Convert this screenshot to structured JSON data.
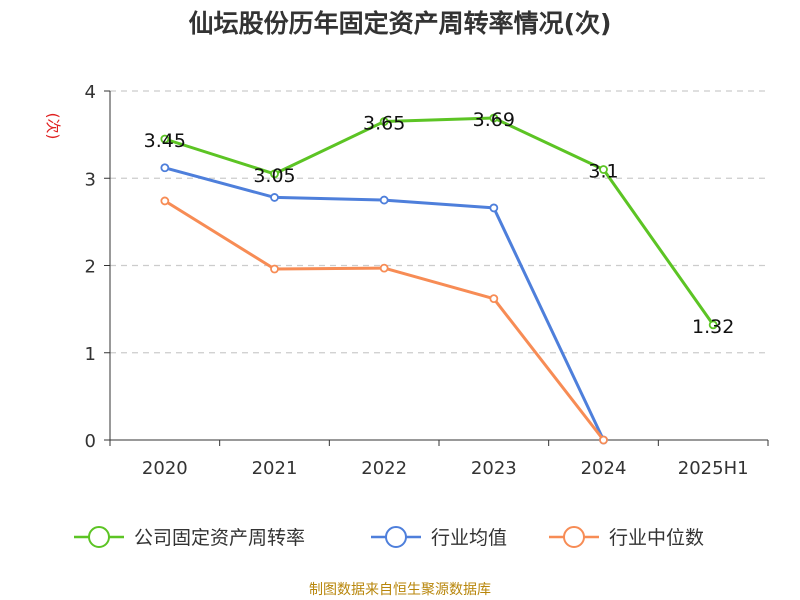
{
  "title": "仙坛股份历年固定资产周转率情况(次)",
  "footer": "制图数据来自恒生聚源数据库",
  "chart_data": {
    "type": "line",
    "title": "仙坛股份历年固定资产周转率情况(次)",
    "ylabel": "(次)",
    "xlabel": "",
    "categories": [
      "2020",
      "2021",
      "2022",
      "2023",
      "2024",
      "2025H1"
    ],
    "ylim": [
      0,
      4
    ],
    "yticks": [
      0,
      1,
      2,
      3,
      4
    ],
    "grid": "horizontal dashed",
    "legend_position": "bottom",
    "series": [
      {
        "name": "公司固定资产周转率",
        "color": "#5cc424",
        "values": [
          3.45,
          3.05,
          3.65,
          3.69,
          3.1,
          1.32
        ],
        "labels": [
          "3.45",
          "3.05",
          "3.65",
          "3.69",
          "3.1",
          "1.32"
        ]
      },
      {
        "name": "行业均值",
        "color": "#4e7fdb",
        "values": [
          3.12,
          2.78,
          2.75,
          2.66,
          0,
          null
        ]
      },
      {
        "name": "行业中位数",
        "color": "#f78c55",
        "values": [
          2.74,
          1.96,
          1.97,
          1.62,
          0,
          null
        ]
      }
    ]
  }
}
